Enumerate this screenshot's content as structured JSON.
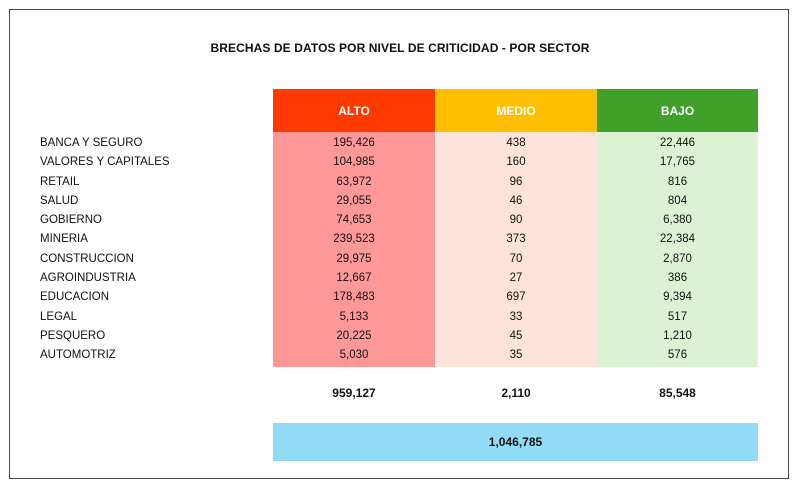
{
  "title": "BRECHAS DE DATOS POR NIVEL DE CRITICIDAD - POR SECTOR",
  "colors": {
    "alto_header": "#ff3a00",
    "medio_header": "#ffbf00",
    "bajo_header": "#3fa02a",
    "alto_body": "#ff9999",
    "medio_body": "#fde3d9",
    "bajo_body": "#ddf2d3",
    "total_bar": "#93dcf7"
  },
  "columns": {
    "alto": "ALTO",
    "medio": "MEDIO",
    "bajo": "BAJO"
  },
  "rows": [
    {
      "sector": "BANCA Y SEGURO",
      "alto": "195,426",
      "medio": "438",
      "bajo": "22,446"
    },
    {
      "sector": "VALORES Y CAPITALES",
      "alto": "104,985",
      "medio": "160",
      "bajo": "17,765"
    },
    {
      "sector": "RETAIL",
      "alto": "63,972",
      "medio": "96",
      "bajo": "816"
    },
    {
      "sector": "SALUD",
      "alto": "29,055",
      "medio": "46",
      "bajo": "804"
    },
    {
      "sector": "GOBIERNO",
      "alto": "74,653",
      "medio": "90",
      "bajo": "6,380"
    },
    {
      "sector": "MINERIA",
      "alto": "239,523",
      "medio": "373",
      "bajo": "22,384"
    },
    {
      "sector": "CONSTRUCCION",
      "alto": "29,975",
      "medio": "70",
      "bajo": "2,870"
    },
    {
      "sector": "AGROINDUSTRIA",
      "alto": "12,667",
      "medio": "27",
      "bajo": "386"
    },
    {
      "sector": "EDUCACION",
      "alto": "178,483",
      "medio": "697",
      "bajo": "9,394"
    },
    {
      "sector": "LEGAL",
      "alto": "5,133",
      "medio": "33",
      "bajo": "517"
    },
    {
      "sector": "PESQUERO",
      "alto": "20,225",
      "medio": "45",
      "bajo": "1,210"
    },
    {
      "sector": "AUTOMOTRIZ",
      "alto": "5,030",
      "medio": "35",
      "bajo": "576"
    }
  ],
  "totals": {
    "alto": "959,127",
    "medio": "2,110",
    "bajo": "85,548"
  },
  "grand_total": "1,046,785"
}
